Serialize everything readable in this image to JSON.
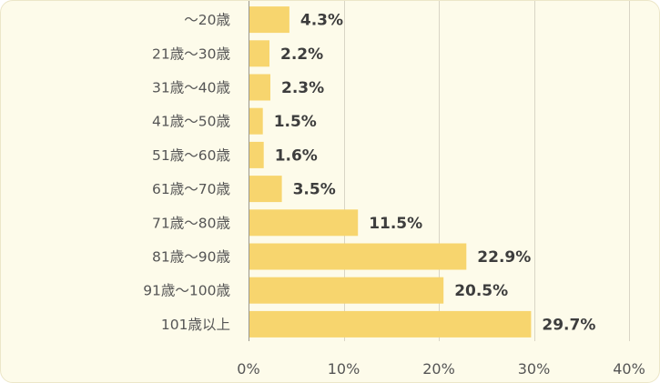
{
  "chart_data": {
    "type": "bar",
    "orientation": "horizontal",
    "categories": [
      "〜20歳",
      "21歳〜30歳",
      "31歳〜40歳",
      "41歳〜50歳",
      "51歳〜60歳",
      "61歳〜70歳",
      "71歳〜80歳",
      "81歳〜90歳",
      "91歳〜100歳",
      "101歳以上"
    ],
    "values": [
      4.3,
      2.2,
      2.3,
      1.5,
      1.6,
      3.5,
      11.5,
      22.9,
      20.5,
      29.7
    ],
    "value_labels": [
      "4.3%",
      "2.2%",
      "2.3%",
      "1.5%",
      "1.6%",
      "3.5%",
      "11.5%",
      "22.9%",
      "20.5%",
      "29.7%"
    ],
    "xlim": [
      0,
      40
    ],
    "x_ticks": [
      0,
      10,
      20,
      30,
      40
    ],
    "x_tick_labels": [
      "0%",
      "10%",
      "20%",
      "30%",
      "40%"
    ],
    "title": "",
    "xlabel": "",
    "ylabel": "",
    "grid": "vertical",
    "legend": "none",
    "colors": {
      "bar": "#f7d56e",
      "background": "#fdfbea"
    }
  }
}
